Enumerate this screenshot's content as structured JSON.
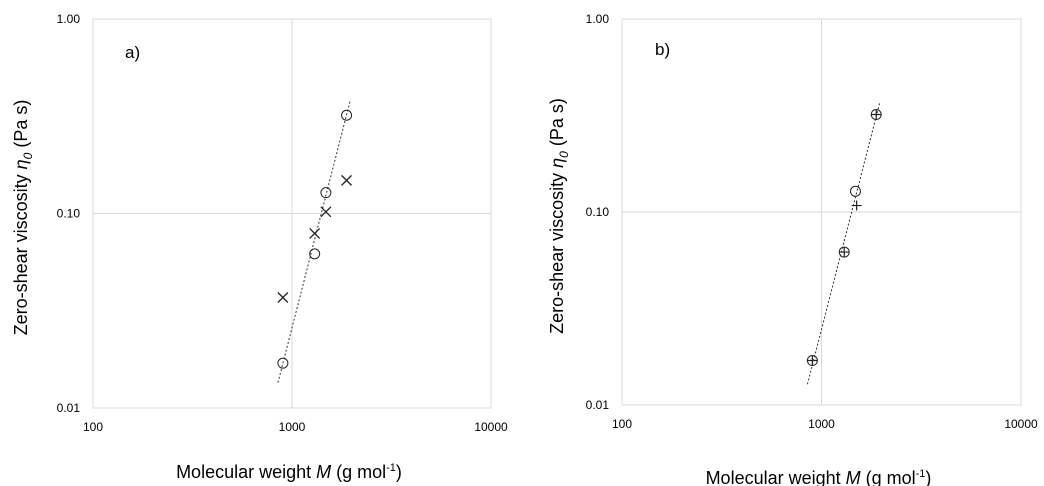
{
  "chart_data": [
    {
      "type": "scatter",
      "panel_label": "a)",
      "xlabel": "Molecular weight M (g mol-1)",
      "xlabel_parts": [
        "Molecular weight ",
        "M",
        " (g mol",
        "-1",
        ")"
      ],
      "ylabel": "Zero-shear viscosity η0 (Pa s)",
      "ylabel_parts": [
        "Zero-shear viscosity ",
        "η",
        "0",
        " (Pa s)"
      ],
      "x_scale": "log",
      "y_scale": "log",
      "xlim": [
        100,
        10000
      ],
      "ylim": [
        0.01,
        1
      ],
      "x_ticks": [
        "100",
        "1000",
        "10000"
      ],
      "y_ticks": [
        "0.01",
        "0.10",
        "1.00"
      ],
      "grid": true,
      "series": [
        {
          "marker": "circle",
          "x": [
            900,
            1300,
            1480,
            1880
          ],
          "y": [
            0.017,
            0.062,
            0.128,
            0.32
          ]
        },
        {
          "marker": "x",
          "x": [
            900,
            1300,
            1480,
            1880
          ],
          "y": [
            0.037,
            0.079,
            0.102,
            0.148
          ]
        }
      ],
      "fit_line": {
        "style": "dotted",
        "x": [
          850,
          1960
        ],
        "y": [
          0.0135,
          0.38
        ]
      }
    },
    {
      "type": "scatter",
      "panel_label": "b)",
      "xlabel": "Molecular weight M (g mol-1)",
      "xlabel_parts": [
        "Molecular weight ",
        "M",
        " (g mol",
        "-1",
        ")"
      ],
      "ylabel": "Zero-shear viscosity η0 (Pa s)",
      "ylabel_parts": [
        "Zero-shear viscosity ",
        "η",
        "0",
        " (Pa s)"
      ],
      "x_scale": "log",
      "y_scale": "log",
      "xlim": [
        100,
        10000
      ],
      "ylim": [
        0.01,
        1
      ],
      "x_ticks": [
        "100",
        "1000",
        "10000"
      ],
      "y_ticks": [
        "0.01",
        "0.10",
        "1.00"
      ],
      "grid": true,
      "series": [
        {
          "marker": "circle",
          "x": [
            900,
            1300,
            1480,
            1880
          ],
          "y": [
            0.017,
            0.062,
            0.128,
            0.32
          ]
        },
        {
          "marker": "plus",
          "x": [
            900,
            1300,
            1500,
            1880
          ],
          "y": [
            0.017,
            0.062,
            0.108,
            0.32
          ]
        }
      ],
      "fit_line": {
        "style": "dotted",
        "x": [
          850,
          1960
        ],
        "y": [
          0.0128,
          0.37
        ]
      }
    }
  ]
}
